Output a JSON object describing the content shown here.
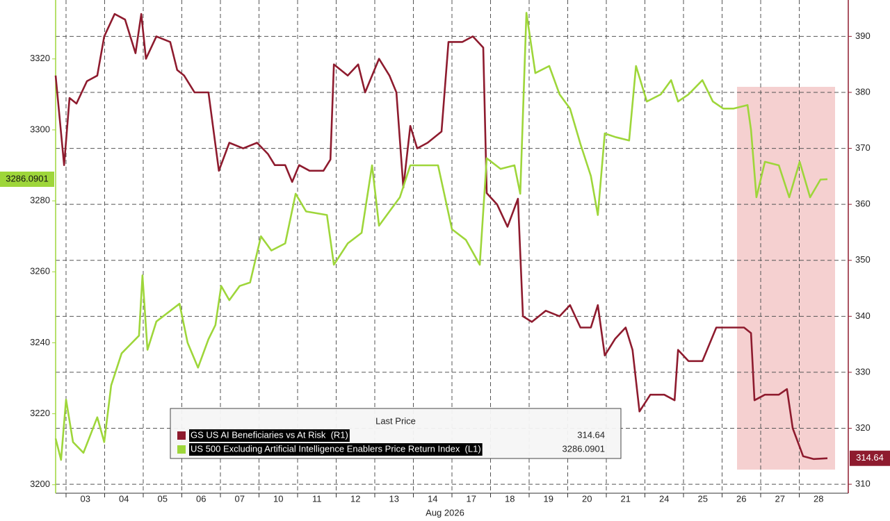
{
  "chart_data": {
    "type": "line",
    "x_label": "Aug 2026",
    "categories": [
      "03",
      "04",
      "05",
      "06",
      "07",
      "10",
      "11",
      "12",
      "13",
      "14",
      "17",
      "18",
      "19",
      "20",
      "21",
      "24",
      "25",
      "26",
      "27",
      "28"
    ],
    "xlim": [
      -0.27,
      20.27
    ],
    "ylim": [
      3197.6,
      3336.6
    ],
    "yticks": [
      3200,
      3220,
      3240,
      3260,
      3280,
      3300,
      3320
    ],
    "y2lim": [
      308.4,
      396.5
    ],
    "y2ticks": [
      310,
      320,
      330,
      340,
      350,
      360,
      370,
      380,
      390
    ],
    "grid": true,
    "legend": "bottom",
    "legend_title": "Last Price",
    "series": [
      {
        "name": "GS US AI Beneficiaries vs At Risk  (R1)",
        "color": "#8e1b2e",
        "axis": "y2",
        "x": [
          -0.27,
          -0.05,
          0.09,
          0.27,
          0.54,
          0.81,
          0.99,
          1.26,
          1.53,
          1.8,
          1.95,
          2.07,
          2.34,
          2.7,
          2.88,
          3.06,
          3.33,
          3.69,
          3.96,
          4.23,
          4.59,
          4.95,
          5.23,
          5.41,
          5.68,
          5.86,
          6.04,
          6.31,
          6.67,
          6.85,
          6.94,
          7.3,
          7.57,
          7.75,
          8.11,
          8.38,
          8.56,
          8.74,
          8.92,
          9.1,
          9.37,
          9.73,
          9.91,
          10.27,
          10.54,
          10.81,
          10.9,
          11.17,
          11.44,
          11.71,
          11.84,
          12.07,
          12.43,
          12.79,
          13.06,
          13.33,
          13.6,
          13.78,
          13.96,
          14.23,
          14.5,
          14.68,
          14.86,
          15.14,
          15.5,
          15.77,
          15.86,
          16.13,
          16.49,
          16.85,
          17.21,
          17.57,
          17.75,
          17.84,
          18.11,
          18.47,
          18.68,
          18.83,
          19.1,
          19.37,
          19.73
        ],
        "values": [
          383,
          367,
          379,
          378,
          382,
          383,
          390,
          394,
          393,
          387,
          394,
          386,
          390,
          389,
          384,
          383,
          380,
          380,
          366,
          371,
          370,
          371,
          369,
          367,
          367,
          364,
          367,
          366,
          366,
          368,
          385,
          383,
          385,
          380,
          386,
          383,
          380,
          363,
          374,
          370,
          371,
          373,
          389,
          389,
          390,
          388,
          362,
          360,
          356,
          361,
          340,
          339,
          341,
          340,
          342,
          338,
          338,
          342,
          333,
          336,
          338,
          334,
          323,
          326,
          326,
          325,
          334,
          332,
          332,
          338,
          338,
          338,
          337,
          325,
          326,
          326,
          327,
          320,
          315,
          314.5,
          314.64
        ]
      },
      {
        "name": "US 500 Excluding Artificial Intelligence Enablers Price Return Index  (L1)",
        "color": "#9ed63a",
        "axis": "y",
        "x": [
          -0.27,
          -0.13,
          0,
          0.18,
          0.45,
          0.63,
          0.81,
          0.99,
          1.17,
          1.44,
          1.71,
          1.89,
          1.98,
          2.11,
          2.34,
          2.7,
          2.94,
          3.15,
          3.42,
          3.69,
          3.87,
          4.02,
          4.23,
          4.5,
          4.77,
          5.05,
          5.32,
          5.68,
          5.95,
          6.22,
          6.76,
          6.94,
          7.3,
          7.66,
          7.93,
          8.11,
          8.38,
          8.65,
          8.92,
          9.28,
          9.64,
          10.0,
          10.36,
          10.72,
          10.9,
          11.26,
          11.62,
          11.77,
          11.93,
          12.16,
          12.52,
          12.79,
          13.06,
          13.33,
          13.6,
          13.78,
          13.96,
          14.23,
          14.59,
          14.77,
          15.05,
          15.41,
          15.68,
          15.86,
          16.13,
          16.49,
          16.76,
          17.03,
          17.3,
          17.66,
          17.75,
          17.89,
          18.11,
          18.47,
          18.74,
          19.01,
          19.28,
          19.55,
          19.73
        ],
        "values": [
          3213,
          3207,
          3224,
          3212,
          3209,
          3214,
          3219,
          3212,
          3228,
          3237,
          3240,
          3242,
          3259,
          3238,
          3246,
          3249,
          3251,
          3240,
          3233,
          3241,
          3245,
          3256,
          3252,
          3256,
          3257,
          3270,
          3266,
          3268,
          3282,
          3277,
          3276,
          3262,
          3268,
          3271,
          3290,
          3273,
          3277,
          3281,
          3290,
          3290,
          3290,
          3272,
          3269,
          3262,
          3292,
          3289,
          3290,
          3282,
          3333,
          3316,
          3318,
          3310,
          3306,
          3296,
          3287,
          3276,
          3299,
          3298,
          3297,
          3318,
          3308,
          3310,
          3314,
          3308,
          3310,
          3314,
          3308,
          3306,
          3306,
          3307,
          3300,
          3281,
          3291,
          3290,
          3281,
          3291,
          3281,
          3286,
          3286.0901
        ]
      }
    ]
  }
}
